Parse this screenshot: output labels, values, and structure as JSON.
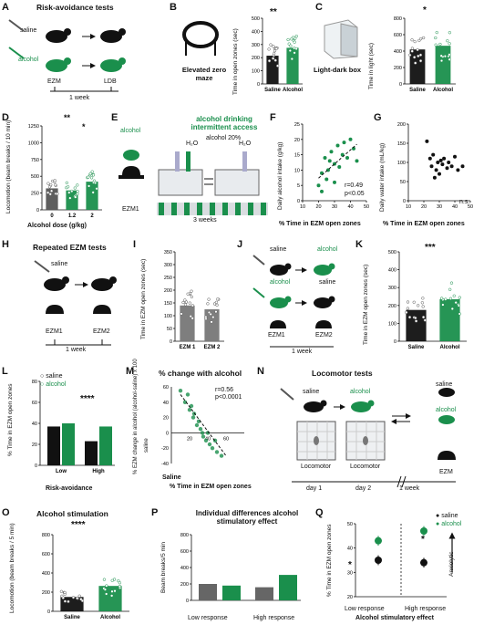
{
  "colors": {
    "green": "#1a8f4c",
    "black": "#111111",
    "gray": "#888888"
  },
  "panels": [
    "A",
    "B",
    "C",
    "D",
    "E",
    "F",
    "G",
    "H",
    "I",
    "J",
    "K",
    "L",
    "M",
    "N",
    "O",
    "P",
    "Q"
  ],
  "A": {
    "title": "Risk-avoidance tests",
    "saline": "saline",
    "alcohol": "alcohol",
    "ezm": "EZM",
    "ldb": "LDB",
    "week": "1 week"
  },
  "B": {
    "caption": "Elevated zero maze",
    "ylabel": "Time in open zones (sec)",
    "sig": "**"
  },
  "C": {
    "caption": "Light-dark box",
    "ylabel": "Time in light (sec)",
    "sig": "*"
  },
  "D": {
    "ylabel": "Locomotion (beam breaks / 10 min)",
    "xlabel": "Alcohol dose (g/kg)",
    "sig1": "**",
    "sig2": "*"
  },
  "E": {
    "title": "alcohol drinking intermittent access",
    "alcohol": "alcohol",
    "h2o": "H₂O",
    "alc20": "alcohol 20%",
    "ezm": "EZM1",
    "weeks": "3 weeks"
  },
  "F": {
    "ylabel": "Daily alcohol intake (g/kg)",
    "xlabel": "% Time in EZM open zones",
    "r": "r=0.49",
    "p": "p<0.05"
  },
  "G": {
    "ylabel": "Daily water intake (mL/kg)",
    "xlabel": "% Time in EZM open zones",
    "ns": "n.s."
  },
  "H": {
    "title": "Repeated EZM tests",
    "saline": "saline",
    "ezm1": "EZM1",
    "ezm2": "EZM2",
    "week": "1 week"
  },
  "I": {
    "ylabel": "Time in EZM open zones (sec)"
  },
  "J": {
    "saline": "saline",
    "alcohol": "alcohol",
    "ezm1": "EZM1",
    "ezm2": "EZM2",
    "week": "1 week"
  },
  "K": {
    "ylabel": "Time in EZM open zones (sec)",
    "sig": "***"
  },
  "L": {
    "ylabel": "% Time in EZM open zones",
    "xlabel": "Risk-avoidance",
    "sig": "****",
    "legend_saline": "saline",
    "legend_alcohol": "alcohol"
  },
  "M": {
    "title": "% change with alcohol",
    "ylabel": "% EZM change in alcohol (alcohol-saline) x 100",
    "ylabel2": "saline",
    "xlabel": "% Time in EZM open zones",
    "xlabel_prefix": "Saline",
    "r": "r=0.56",
    "p": "p<0.0001"
  },
  "N": {
    "title": "Locomotor tests",
    "saline": "saline",
    "alcohol": "alcohol",
    "loc1": "Locomotor",
    "loc2": "Locomotor",
    "day1": "day 1",
    "day2": "day 2",
    "week": "1 week",
    "ezm": "EZM"
  },
  "O": {
    "title": "Alcohol stimulation",
    "ylabel": "Locomotion (beam breaks / 5 min)",
    "sig": "****"
  },
  "P": {
    "title": "Individual differences alcohol stimulatory effect",
    "ylabel": "Beam breaks/5 min",
    "low": "Low response",
    "high": "High response"
  },
  "Q": {
    "ylabel": "% Time in EZM open zones",
    "xlabel": "Alcohol stimulatory effect",
    "low": "Low response",
    "high": "High response",
    "anx": "Anxiolytic",
    "sig": "*",
    "legend_saline": "saline",
    "legend_alcohol": "alcohol"
  },
  "chart_data": [
    {
      "panel": "B",
      "type": "bar",
      "categories": [
        "Saline",
        "Alcohol"
      ],
      "values": [
        215,
        275
      ],
      "ylim": [
        0,
        500
      ],
      "yticks": [
        0,
        100,
        200,
        300,
        400,
        500
      ],
      "ylabel": "Time in open zones (sec)"
    },
    {
      "panel": "C",
      "type": "bar",
      "categories": [
        "Saline",
        "Alcohol"
      ],
      "values": [
        420,
        465
      ],
      "ylim": [
        0,
        800
      ],
      "yticks": [
        0,
        200,
        400,
        600,
        800
      ],
      "ylabel": "Time in light (sec)"
    },
    {
      "panel": "D",
      "type": "bar",
      "categories": [
        "0",
        "1.2",
        "2"
      ],
      "values": [
        320,
        290,
        420
      ],
      "ylim": [
        0,
        1250
      ],
      "yticks": [
        0,
        250,
        500,
        750,
        1000,
        1250
      ],
      "xlabel": "Alcohol dose (g/kg)"
    },
    {
      "panel": "F",
      "type": "scatter",
      "x": [
        20,
        22,
        24,
        25,
        27,
        28,
        30,
        32,
        33,
        35,
        36,
        38,
        40,
        42,
        44,
        22,
        26,
        30
      ],
      "y": [
        5,
        9,
        14,
        7,
        13,
        16,
        12,
        18,
        11,
        15,
        19,
        14,
        20,
        17,
        13,
        3,
        10,
        6
      ],
      "xlim": [
        10,
        50
      ],
      "ylim": [
        0,
        25
      ],
      "xticks": [
        10,
        20,
        30,
        40,
        50
      ],
      "yticks": [
        0,
        5,
        10,
        15,
        20,
        25
      ]
    },
    {
      "panel": "G",
      "type": "scatter",
      "x": [
        22,
        24,
        25,
        26,
        28,
        29,
        30,
        32,
        33,
        35,
        36,
        38,
        40,
        42,
        45,
        27,
        31
      ],
      "y": [
        155,
        110,
        90,
        120,
        80,
        100,
        70,
        95,
        110,
        85,
        100,
        90,
        115,
        80,
        90,
        60,
        105
      ],
      "xlim": [
        10,
        50
      ],
      "ylim": [
        0,
        200
      ],
      "xticks": [
        10,
        20,
        30,
        40,
        50
      ],
      "yticks": [
        0,
        50,
        100,
        150,
        200
      ]
    },
    {
      "panel": "I",
      "type": "bar",
      "categories": [
        "EZM 1",
        "EZM 2"
      ],
      "values": [
        140,
        125
      ],
      "ylim": [
        0,
        350
      ],
      "yticks": [
        0,
        50,
        100,
        150,
        200,
        250,
        300,
        350
      ]
    },
    {
      "panel": "K",
      "type": "bar",
      "categories": [
        "Saline",
        "Alcohol"
      ],
      "values": [
        175,
        235
      ],
      "ylim": [
        0,
        500
      ],
      "yticks": [
        0,
        100,
        200,
        300,
        400,
        500
      ]
    },
    {
      "panel": "L",
      "type": "bar",
      "categories": [
        "Low",
        "High"
      ],
      "series": [
        {
          "name": "saline",
          "values": [
            37,
            23
          ]
        },
        {
          "name": "alcohol",
          "values": [
            40,
            37
          ]
        }
      ],
      "ylim": [
        0,
        80
      ],
      "yticks": [
        0,
        20,
        40,
        60,
        80
      ],
      "xlabel": "Risk-avoidance"
    },
    {
      "panel": "M",
      "type": "scatter",
      "x": [
        10,
        15,
        18,
        20,
        22,
        24,
        25,
        28,
        30,
        32,
        34,
        35,
        38,
        40,
        42,
        45,
        48,
        50,
        55
      ],
      "y": [
        55,
        40,
        50,
        30,
        35,
        20,
        25,
        10,
        15,
        5,
        0,
        -5,
        -10,
        0,
        -15,
        -20,
        -10,
        -25,
        -30
      ],
      "xlim": [
        0,
        80
      ],
      "ylim": [
        -40,
        60
      ],
      "xticks": [
        20,
        40,
        60
      ],
      "yticks": [
        -40,
        -20,
        0,
        20,
        40,
        60
      ]
    },
    {
      "panel": "O",
      "type": "bar",
      "categories": [
        "Saline",
        "Alcohol"
      ],
      "values": [
        150,
        265
      ],
      "ylim": [
        0,
        800
      ],
      "yticks": [
        0,
        200,
        400,
        600,
        800
      ]
    },
    {
      "panel": "P",
      "type": "bar",
      "categories": [
        "Low response saline",
        "Low response alcohol",
        "High response saline",
        "High response alcohol"
      ],
      "values": [
        200,
        180,
        160,
        310
      ],
      "ylim": [
        0,
        800
      ],
      "yticks": [
        0,
        200,
        400,
        600,
        800
      ]
    },
    {
      "panel": "Q",
      "type": "scatter",
      "categories": [
        "Low response",
        "High response"
      ],
      "series": [
        {
          "name": "saline",
          "values": [
            35,
            34
          ]
        },
        {
          "name": "alcohol",
          "values": [
            43,
            47
          ]
        }
      ],
      "ylim": [
        20,
        50
      ],
      "yticks": [
        20,
        30,
        40,
        50
      ]
    }
  ]
}
